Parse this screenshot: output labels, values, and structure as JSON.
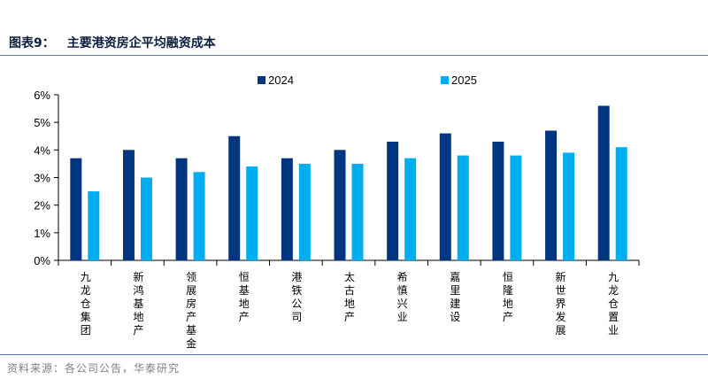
{
  "header": {
    "label": "图表9：",
    "title": "主要港资房企平均融资成本"
  },
  "footer": {
    "source": "资料来源：各公司公告，华泰研究"
  },
  "colors": {
    "series_2024": "#003580",
    "series_2025": "#00aeef",
    "axis": "#000000"
  },
  "chart_data": {
    "type": "bar",
    "title": "主要港资房企平均融资成本",
    "xlabel": "",
    "ylabel": "",
    "ylim": [
      0,
      6
    ],
    "yticks": [
      "0%",
      "1%",
      "2%",
      "3%",
      "4%",
      "5%",
      "6%"
    ],
    "legend_position": "top-center",
    "grid": false,
    "categories": [
      "九龙仓集团",
      "新鸿基地产",
      "领展房产基金",
      "恒基地产",
      "港铁公司",
      "太古地产",
      "希慎兴业",
      "嘉里建设",
      "恒隆地产",
      "新世界发展",
      "九龙仓置业"
    ],
    "series": [
      {
        "name": "2024",
        "values": [
          3.7,
          4.0,
          3.7,
          4.5,
          3.7,
          4.0,
          4.3,
          4.6,
          4.3,
          4.7,
          5.6
        ]
      },
      {
        "name": "2025",
        "values": [
          2.5,
          3.0,
          3.2,
          3.4,
          3.5,
          3.5,
          3.7,
          3.8,
          3.8,
          3.9,
          4.1
        ]
      }
    ]
  }
}
